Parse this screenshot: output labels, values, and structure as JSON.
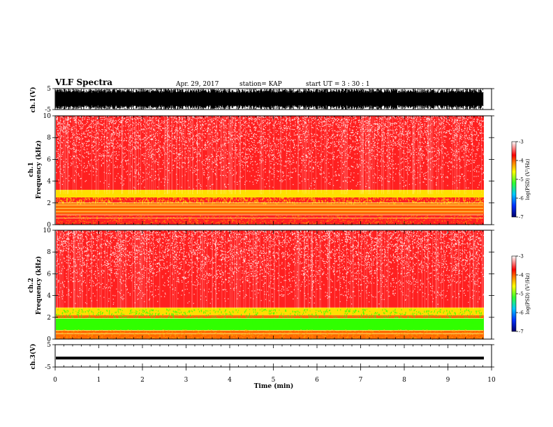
{
  "header": {
    "title": "VLF Spectra",
    "date": "Apr. 29, 2017",
    "station": "station= KAP",
    "start": "start  UT =  3 : 30 : 1"
  },
  "colorbar": {
    "label": "log(PSD) (V²/Hz)",
    "ticks": [
      "-3",
      "-4",
      "-5",
      "-6",
      "-7"
    ]
  },
  "chart_data": {
    "type": "heatmap",
    "xlabel": "Time  (min)",
    "xlim": [
      0,
      10
    ],
    "x_ticks": [
      "0",
      "1",
      "2",
      "3",
      "4",
      "5",
      "6",
      "7",
      "8",
      "9",
      "10"
    ],
    "panels": [
      {
        "id": "ch1-waveform",
        "ylabel": "ch.1(V)",
        "ylim": [
          -5,
          5
        ],
        "y_ticks": [
          "5",
          "-5"
        ],
        "description_values": {
          "signal_range": [
            -5,
            5
          ]
        }
      },
      {
        "id": "ch1-spectrogram",
        "ylabel_1": "ch.1",
        "ylabel_2": "Frequency  (kHz)",
        "ylim": [
          0,
          10
        ],
        "y_ticks": [
          "0",
          "2",
          "4",
          "6",
          "8",
          "10"
        ],
        "log_psd_range": [
          -7,
          -3
        ],
        "bands_khz": [
          {
            "from": 0,
            "to": 1.0,
            "level": -3.7
          },
          {
            "from": 1.0,
            "to": 2.0,
            "level": -4.1
          },
          {
            "from": 2.0,
            "to": 2.5,
            "level": -3.6
          },
          {
            "from": 2.5,
            "to": 3.2,
            "level": -4.4
          },
          {
            "from": 3.2,
            "to": 10,
            "level": -3.5
          }
        ]
      },
      {
        "id": "ch2-spectrogram",
        "ylabel_1": "ch.2",
        "ylabel_2": "Frequency  (kHz)",
        "ylim": [
          0,
          10
        ],
        "y_ticks": [
          "0",
          "2",
          "4",
          "6",
          "8",
          "10"
        ],
        "log_psd_range": [
          -7,
          -3
        ],
        "bands_khz": [
          {
            "from": 0,
            "to": 0.8,
            "level": -4.0
          },
          {
            "from": 0.8,
            "to": 1.9,
            "level": -5.0
          },
          {
            "from": 1.9,
            "to": 2.2,
            "level": -4.3
          },
          {
            "from": 2.2,
            "to": 2.9,
            "level": -4.4
          },
          {
            "from": 2.9,
            "to": 10,
            "level": -3.6
          }
        ]
      },
      {
        "id": "ch3-waveform",
        "ylabel": "ch.3(V)",
        "ylim": [
          -5,
          5
        ],
        "y_ticks": [
          "5",
          "-5"
        ],
        "description_values": {
          "signal_level": -1
        }
      }
    ]
  },
  "colors": {
    "red": "#ff2020",
    "yellow": "#ffe000",
    "green": "#30ff00",
    "black": "#000000"
  }
}
